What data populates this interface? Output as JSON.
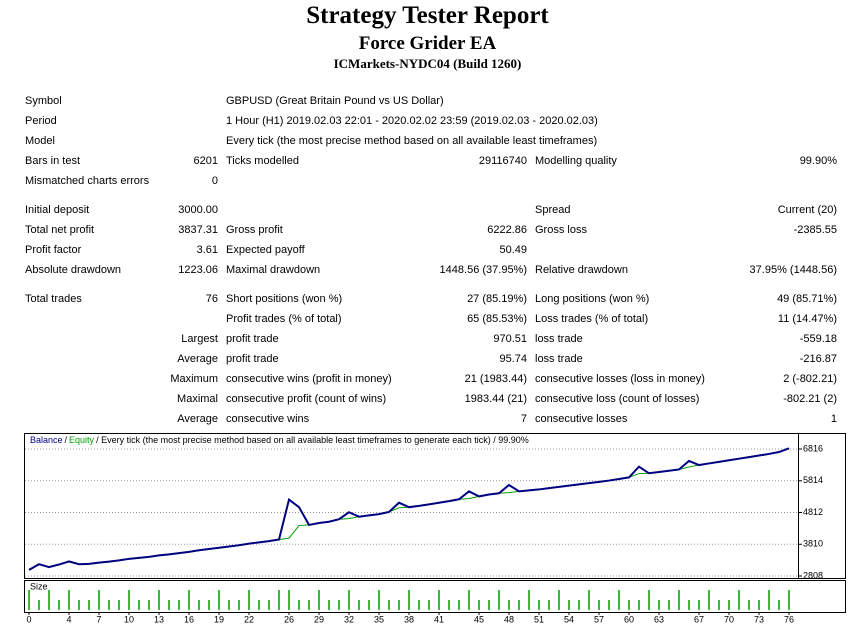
{
  "header": {
    "title": "Strategy Tester Report",
    "subtitle": "Force Grider EA",
    "server": "ICMarkets-NYDC04 (Build 1260)"
  },
  "table": {
    "sections": [
      [
        {
          "label": "Symbol",
          "label2": "GBPUSD (Great Britain Pound vs US Dollar)"
        },
        {
          "label": "Period",
          "label2": "1 Hour (H1) 2019.02.03 22:01 - 2020.02.02 23:59 (2019.02.03 - 2020.02.03)"
        },
        {
          "label": "Model",
          "label2": "Every tick (the most precise method based on all available least timeframes)"
        },
        {
          "label": "Bars in test",
          "value": "6201",
          "label2": "Ticks modelled",
          "value2": "29116740",
          "label3": "Modelling quality",
          "value3": "99.90%"
        },
        {
          "label": "Mismatched charts errors",
          "value": "0"
        }
      ],
      [
        {
          "label": "Initial deposit",
          "value": "3000.00",
          "label3": "Spread",
          "value3": "Current (20)"
        },
        {
          "label": "Total net profit",
          "value": "3837.31",
          "label2": "Gross profit",
          "value2": "6222.86",
          "label3": "Gross loss",
          "value3": "-2385.55"
        },
        {
          "label": "Profit factor",
          "value": "3.61",
          "label2": "Expected payoff",
          "value2": "50.49"
        },
        {
          "label": "Absolute drawdown",
          "value": "1223.06",
          "label2": "Maximal drawdown",
          "value2": "1448.56 (37.95%)",
          "label3": "Relative drawdown",
          "value3": "37.95% (1448.56)"
        }
      ],
      [
        {
          "label": "Total trades",
          "value": "76",
          "label2": "Short positions (won %)",
          "value2": "27 (85.19%)",
          "label3": "Long positions (won %)",
          "value3": "49 (85.71%)"
        },
        {
          "label2": "Profit trades (% of total)",
          "value2": "65 (85.53%)",
          "label3": "Loss trades (% of total)",
          "value3": "11 (14.47%)"
        },
        {
          "value": "Largest",
          "label2": "profit trade",
          "value2": "970.51",
          "label3": "loss trade",
          "value3": "-559.18"
        },
        {
          "value": "Average",
          "label2": "profit trade",
          "value2": "95.74",
          "label3": "loss trade",
          "value3": "-216.87"
        },
        {
          "value": "Maximum",
          "label2": "consecutive wins (profit in money)",
          "value2": "21 (1983.44)",
          "label3": "consecutive losses (loss in money)",
          "value3": "2 (-802.21)"
        },
        {
          "value": "Maximal",
          "label2": "consecutive profit (count of wins)",
          "value2": "1983.44 (21)",
          "label3": "consecutive loss (count of losses)",
          "value3": "-802.21 (2)"
        },
        {
          "value": "Average",
          "label2": "consecutive wins",
          "value2": "7",
          "label3": "consecutive losses",
          "value3": "1"
        }
      ]
    ]
  },
  "chart_data": {
    "type": "line",
    "legend_separator": "/",
    "legend_note": "/ Every tick (the most precise method based on all available least timeframes to generate each tick) / 99.90%",
    "x": [
      0,
      1,
      2,
      3,
      4,
      5,
      6,
      7,
      8,
      9,
      10,
      11,
      12,
      13,
      14,
      15,
      16,
      17,
      18,
      19,
      20,
      21,
      22,
      23,
      24,
      25,
      26,
      27,
      28,
      29,
      30,
      31,
      32,
      33,
      34,
      35,
      36,
      37,
      38,
      39,
      40,
      41,
      42,
      43,
      44,
      45,
      46,
      47,
      48,
      49,
      50,
      51,
      52,
      53,
      54,
      55,
      56,
      57,
      58,
      59,
      60,
      61,
      62,
      63,
      64,
      65,
      66,
      67,
      68,
      69,
      70,
      71,
      72,
      73,
      74,
      75,
      76
    ],
    "series": [
      {
        "name": "Balance",
        "color": "#000080",
        "values": [
          3000,
          3180,
          3090,
          3170,
          3270,
          3180,
          3190,
          3230,
          3260,
          3300,
          3350,
          3380,
          3410,
          3460,
          3490,
          3530,
          3570,
          3620,
          3660,
          3700,
          3740,
          3780,
          3830,
          3870,
          3910,
          3960,
          5220,
          4980,
          4420,
          4480,
          4520,
          4600,
          4820,
          4680,
          4720,
          4760,
          4830,
          5120,
          4980,
          5020,
          5070,
          5120,
          5170,
          5230,
          5480,
          5320,
          5380,
          5420,
          5680,
          5480,
          5510,
          5540,
          5580,
          5620,
          5660,
          5700,
          5740,
          5780,
          5820,
          5870,
          5920,
          6260,
          6050,
          6090,
          6130,
          6170,
          6440,
          6310,
          6360,
          6410,
          6460,
          6510,
          6560,
          6610,
          6660,
          6720,
          6837
        ]
      },
      {
        "name": "Equity",
        "color": "#00a000",
        "values": [
          3000,
          3180,
          3090,
          3170,
          3250,
          3180,
          3190,
          3230,
          3260,
          3300,
          3350,
          3380,
          3410,
          3460,
          3490,
          3530,
          3570,
          3620,
          3660,
          3700,
          3740,
          3780,
          3830,
          3870,
          3910,
          3960,
          4000,
          4400,
          4420,
          4480,
          4520,
          4600,
          4620,
          4680,
          4720,
          4760,
          4830,
          4960,
          4980,
          5020,
          5070,
          5120,
          5170,
          5230,
          5250,
          5320,
          5380,
          5420,
          5440,
          5480,
          5510,
          5540,
          5580,
          5620,
          5660,
          5700,
          5740,
          5780,
          5820,
          5870,
          5920,
          6040,
          6050,
          6090,
          6130,
          6170,
          6250,
          6310,
          6360,
          6410,
          6460,
          6510,
          6560,
          6610,
          6660,
          6720,
          6837
        ]
      }
    ],
    "ylim": [
      2808,
      6816
    ],
    "yticks": [
      2808,
      3810,
      4812,
      5814,
      6816
    ],
    "xlim": [
      0,
      76
    ],
    "xticks": [
      0,
      4,
      7,
      10,
      13,
      16,
      19,
      22,
      26,
      29,
      32,
      35,
      38,
      41,
      45,
      48,
      51,
      54,
      57,
      60,
      63,
      67,
      70,
      73,
      76
    ],
    "size_label": "Size",
    "size_color": "#00a000",
    "size_values": [
      2,
      1,
      2,
      1,
      2,
      1,
      1,
      2,
      1,
      1,
      2,
      1,
      1,
      2,
      1,
      1,
      2,
      1,
      1,
      2,
      1,
      1,
      2,
      1,
      1,
      2,
      2,
      1,
      1,
      2,
      1,
      1,
      2,
      1,
      1,
      2,
      1,
      1,
      2,
      1,
      1,
      2,
      1,
      1,
      2,
      1,
      1,
      2,
      1,
      1,
      2,
      1,
      1,
      2,
      1,
      1,
      2,
      1,
      1,
      2,
      1,
      1,
      2,
      1,
      1,
      2,
      1,
      1,
      2,
      1,
      1,
      2,
      1,
      1,
      2,
      1,
      2
    ]
  }
}
